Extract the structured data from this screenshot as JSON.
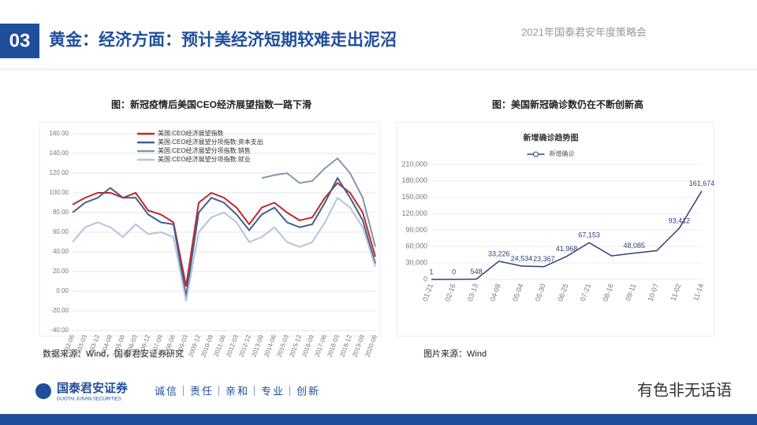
{
  "header": {
    "section": "03",
    "title": "黄金：经济方面：预计美经济短期较难走出泥沼",
    "event": "2021年国泰君安年度策略会"
  },
  "captions": [
    "图：新冠疫情后美国CEO经济展望指数一路下滑",
    "图：美国新冠确诊数仍在不断创新高"
  ],
  "sources": [
    "数据来源：Wind，国泰君安证券研究",
    "图片来源：Wind"
  ],
  "footer": {
    "brand": "国泰君安证券",
    "brand_en": "GUOTAI JUNAN SECURITIES",
    "slogan": "诚信｜责任｜亲和｜专业｜创新",
    "wechat": "有色非无话语"
  },
  "chart_data": [
    {
      "type": "line",
      "categories": [
        "2002-06",
        "2003-03",
        "2003-12",
        "2004-09",
        "2005-06",
        "2006-03",
        "2006-12",
        "2007-09",
        "2008-06",
        "2009-03",
        "2009-12",
        "2010-09",
        "2011-06",
        "2012-03",
        "2012-12",
        "2013-09",
        "2014-06",
        "2015-03",
        "2015-12",
        "2016-09",
        "2017-06",
        "2018-03",
        "2018-12",
        "2019-09",
        "2020-06"
      ],
      "series": [
        {
          "name": "美国:CEO经济展望指数",
          "color": "#c0262d",
          "values": [
            88,
            95,
            100,
            100,
            95,
            100,
            82,
            78,
            70,
            5,
            90,
            100,
            95,
            85,
            68,
            85,
            90,
            80,
            72,
            75,
            95,
            110,
            100,
            80,
            35
          ]
        },
        {
          "name": "美国:CEO经济展望分项指数:资本支出",
          "color": "#3f5f8a",
          "values": [
            80,
            90,
            95,
            105,
            95,
            95,
            78,
            70,
            68,
            -5,
            80,
            95,
            90,
            78,
            62,
            78,
            85,
            70,
            65,
            68,
            90,
            115,
            95,
            72,
            28
          ]
        },
        {
          "name": "美国:CEO经济展望分项指数:销售",
          "color": "#8497b0",
          "values": [
            null,
            null,
            null,
            null,
            null,
            null,
            null,
            null,
            null,
            null,
            null,
            null,
            null,
            null,
            null,
            115,
            118,
            120,
            110,
            112,
            125,
            135,
            120,
            95,
            45
          ]
        },
        {
          "name": "美国:CEO经济展望分项指数:就业",
          "color": "#b4c3dc",
          "values": [
            50,
            65,
            70,
            65,
            55,
            68,
            58,
            60,
            55,
            -10,
            60,
            75,
            80,
            70,
            50,
            55,
            65,
            50,
            45,
            50,
            70,
            95,
            85,
            65,
            25
          ]
        }
      ],
      "ylim": [
        -40,
        160
      ],
      "yticks": [
        {
          "value": -40,
          "label": "-40.00"
        },
        {
          "value": -20,
          "label": "-20.00"
        },
        {
          "value": 0,
          "label": "0.00"
        },
        {
          "value": 20,
          "label": "20.00"
        },
        {
          "value": 40,
          "label": "40.00"
        },
        {
          "value": 60,
          "label": "60.00"
        },
        {
          "value": 80,
          "label": "80.00"
        },
        {
          "value": 100,
          "label": "100.00"
        },
        {
          "value": 120,
          "label": "120.00"
        },
        {
          "value": 140,
          "label": "140.00"
        },
        {
          "value": 160,
          "label": "160.00"
        }
      ],
      "legend": "upper-left"
    },
    {
      "type": "line",
      "title": "新增确诊趋势图",
      "categories": [
        "01-21",
        "02-16",
        "03-13",
        "04-08",
        "05-04",
        "05-30",
        "06-25",
        "07-21",
        "08-16",
        "09-11",
        "10-07",
        "11-02",
        "11-14"
      ],
      "series": [
        {
          "name": "新增确诊",
          "color": "#2f3f78",
          "values": [
            1,
            0,
            548,
            33226,
            24534,
            23367,
            41968,
            67153,
            43000,
            48085,
            52500,
            93412,
            161674
          ],
          "value_labels": [
            "1",
            "0",
            "548",
            "33,226",
            "24,534",
            "23,367",
            "41,968",
            "67,153",
            null,
            "48,085",
            null,
            "93,412",
            "161,674"
          ]
        }
      ],
      "ylim": [
        0,
        210000
      ],
      "yticks": [
        {
          "value": 0,
          "label": "0"
        },
        {
          "value": 30000,
          "label": "30,000"
        },
        {
          "value": 60000,
          "label": "60,000"
        },
        {
          "value": 90000,
          "label": "90,000"
        },
        {
          "value": 120000,
          "label": "120,000"
        },
        {
          "value": 150000,
          "label": "150,000"
        },
        {
          "value": 180000,
          "label": "180,000"
        },
        {
          "value": 210000,
          "label": "210,000"
        }
      ],
      "legend": "top"
    }
  ]
}
